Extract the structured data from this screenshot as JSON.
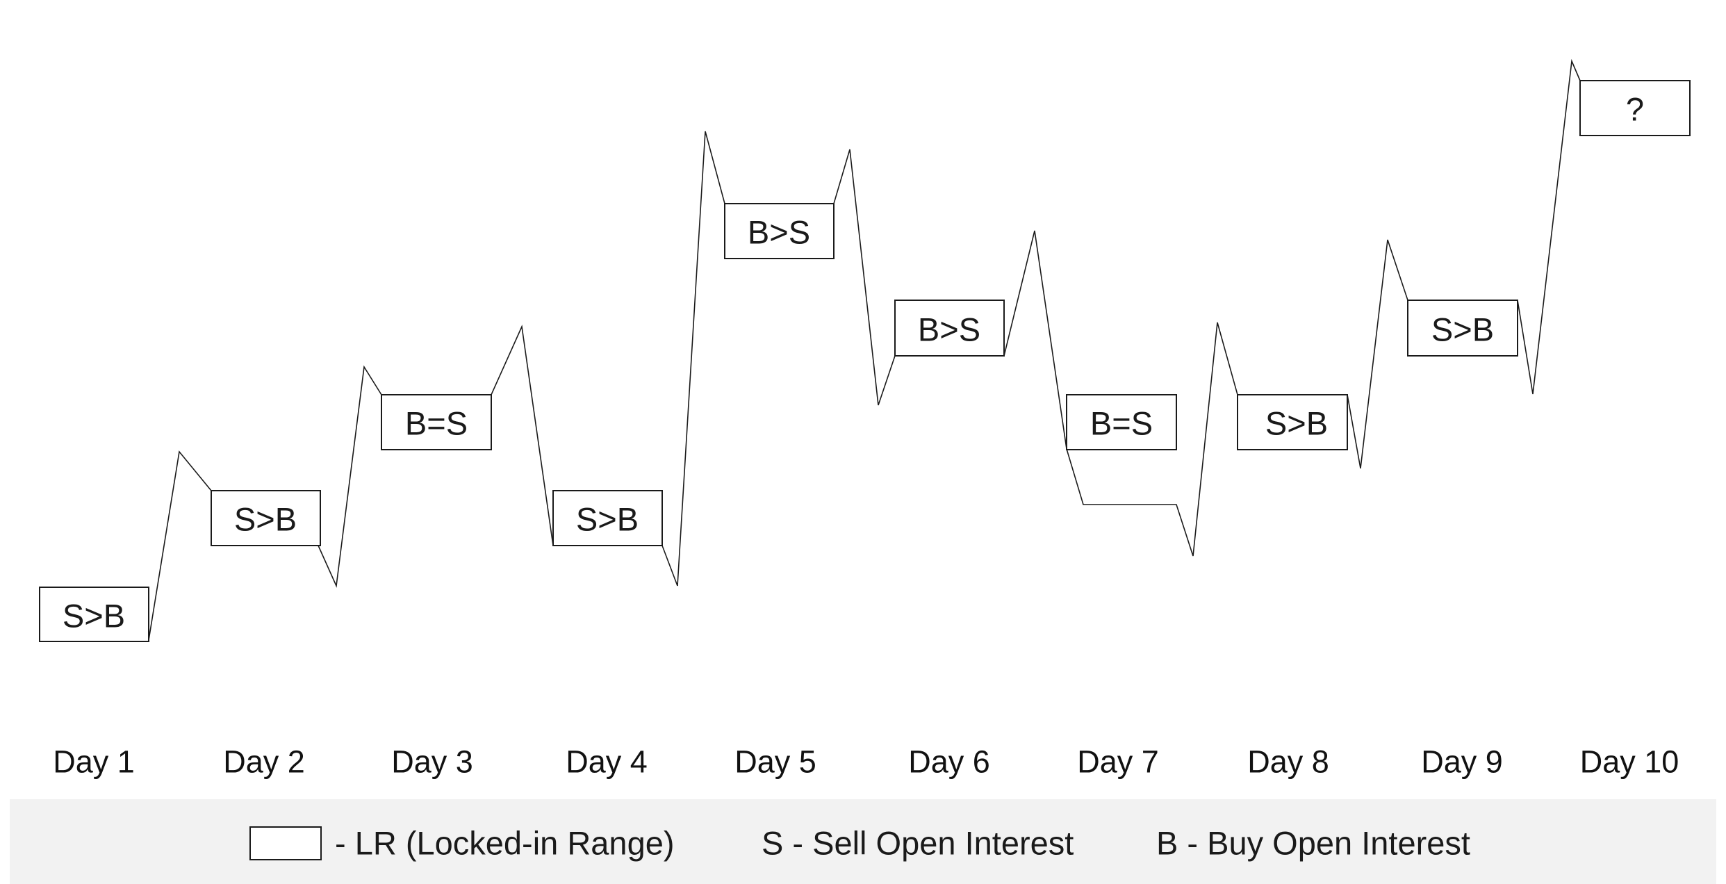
{
  "days": [
    {
      "label": "Day 1",
      "box_label": "S>B"
    },
    {
      "label": "Day 2",
      "box_label": "S>B"
    },
    {
      "label": "Day 3",
      "box_label": "B=S"
    },
    {
      "label": "Day 4",
      "box_label": "S>B"
    },
    {
      "label": "Day 5",
      "box_label": "B>S"
    },
    {
      "label": "Day 6",
      "box_label": "B>S"
    },
    {
      "label": "Day 7",
      "box_label": "B=S"
    },
    {
      "label": "Day 8",
      "box_label": "S>B"
    },
    {
      "label": "Day 9",
      "box_label": "S>B"
    },
    {
      "label": "Day 10",
      "box_label": "?"
    }
  ],
  "legend": {
    "box_text": "- LR (Locked-in Range)",
    "sell_text": "S - Sell Open Interest",
    "buy_text": "B - Buy Open Interest"
  }
}
